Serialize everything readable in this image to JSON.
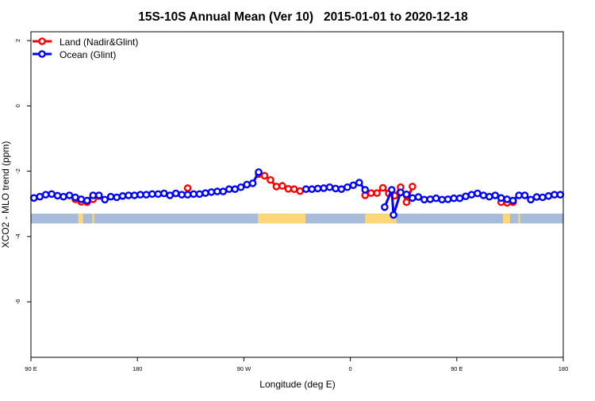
{
  "chart_data": {
    "type": "line",
    "title": "15S-10S Annual Mean (Ver 10)   2015-01-01 to 2020-12-18",
    "xlabel": "Longitude (deg E)",
    "ylabel": "XCO2 - MLO trend (ppm)",
    "xlim": [
      90,
      540
    ],
    "ylim": [
      -7.7,
      2.27
    ],
    "xticks": [
      {
        "value": 90,
        "label": "90 E"
      },
      {
        "value": 180,
        "label": "180"
      },
      {
        "value": 270,
        "label": "90 W"
      },
      {
        "value": 360,
        "label": "0"
      },
      {
        "value": 450,
        "label": "90 E"
      },
      {
        "value": 540,
        "label": "180"
      }
    ],
    "yticks": [
      {
        "value": 2,
        "label": "2"
      },
      {
        "value": 0,
        "label": "0"
      },
      {
        "value": -2,
        "label": "-2"
      },
      {
        "value": -4,
        "label": "-4"
      },
      {
        "value": -6,
        "label": "-6"
      }
    ],
    "grid": false,
    "legend_position": "top-left",
    "series": [
      {
        "name": "Land (Nadir&Glint)",
        "color": "#ff0000",
        "points": [
          [
            127.5,
            -2.86
          ],
          [
            132.5,
            -2.94
          ],
          [
            137.5,
            -2.95
          ],
          [
            142.5,
            -2.86
          ],
          [
            147.5,
            -2.76
          ],
          null,
          [
            222.5,
            -2.52
          ],
          null,
          [
            282.5,
            -2.09
          ],
          [
            287.5,
            -2.14
          ],
          [
            292.5,
            -2.27
          ],
          [
            297.5,
            -2.47
          ],
          [
            302.5,
            -2.45
          ],
          [
            307.5,
            -2.54
          ],
          [
            312.5,
            -2.55
          ],
          [
            317.5,
            -2.61
          ],
          null,
          [
            372.5,
            -2.74
          ],
          [
            377.5,
            -2.67
          ],
          [
            382.5,
            -2.67
          ],
          [
            387.5,
            -2.51
          ],
          [
            392.5,
            -2.68
          ],
          [
            397.5,
            -2.75
          ],
          [
            402.5,
            -2.49
          ],
          [
            407.5,
            -2.95
          ],
          [
            412.5,
            -2.47
          ],
          null,
          [
            487.5,
            -2.95
          ],
          [
            492.5,
            -2.97
          ],
          [
            497.5,
            -2.95
          ]
        ]
      },
      {
        "name": "Ocean (Glint)",
        "color": "#0000ff",
        "points": [
          [
            92.5,
            -2.82
          ],
          [
            97.5,
            -2.78
          ],
          [
            102.5,
            -2.72
          ],
          [
            107.5,
            -2.7
          ],
          [
            112.5,
            -2.75
          ],
          [
            117.5,
            -2.78
          ],
          [
            122.5,
            -2.74
          ],
          [
            127.5,
            -2.8
          ],
          [
            132.5,
            -2.86
          ],
          [
            137.5,
            -2.9
          ],
          [
            142.5,
            -2.74
          ],
          [
            147.5,
            -2.74
          ],
          [
            152.5,
            -2.87
          ],
          [
            157.5,
            -2.78
          ],
          [
            162.5,
            -2.8
          ],
          [
            167.5,
            -2.76
          ],
          [
            172.5,
            -2.74
          ],
          [
            177.5,
            -2.74
          ],
          [
            182.5,
            -2.72
          ],
          [
            187.5,
            -2.72
          ],
          [
            192.5,
            -2.7
          ],
          [
            197.5,
            -2.7
          ],
          [
            202.5,
            -2.68
          ],
          [
            207.5,
            -2.74
          ],
          [
            212.5,
            -2.68
          ],
          [
            217.5,
            -2.72
          ],
          [
            222.5,
            -2.72
          ],
          [
            227.5,
            -2.7
          ],
          [
            232.5,
            -2.7
          ],
          [
            237.5,
            -2.67
          ],
          [
            242.5,
            -2.64
          ],
          [
            247.5,
            -2.62
          ],
          [
            252.5,
            -2.62
          ],
          [
            257.5,
            -2.55
          ],
          [
            262.5,
            -2.55
          ],
          [
            267.5,
            -2.49
          ],
          [
            272.5,
            -2.41
          ],
          [
            277.5,
            -2.37
          ],
          [
            282.5,
            -2.03
          ],
          null,
          [
            322.5,
            -2.55
          ],
          [
            327.5,
            -2.55
          ],
          [
            332.5,
            -2.53
          ],
          [
            337.5,
            -2.52
          ],
          [
            342.5,
            -2.49
          ],
          [
            347.5,
            -2.53
          ],
          [
            352.5,
            -2.55
          ],
          [
            357.5,
            -2.49
          ],
          [
            362.5,
            -2.43
          ],
          [
            367.5,
            -2.35
          ],
          [
            372.5,
            -2.57
          ],
          null,
          [
            389.0,
            -3.1
          ],
          [
            395.0,
            -2.57
          ],
          [
            396.5,
            -3.34
          ],
          [
            402.5,
            -2.65
          ],
          [
            407.5,
            -2.71
          ],
          [
            412.5,
            -2.82
          ],
          [
            417.5,
            -2.79
          ],
          [
            422.5,
            -2.87
          ],
          [
            427.5,
            -2.86
          ],
          [
            432.5,
            -2.83
          ],
          [
            437.5,
            -2.87
          ],
          [
            442.5,
            -2.86
          ],
          [
            447.5,
            -2.83
          ],
          [
            452.5,
            -2.83
          ],
          [
            457.5,
            -2.77
          ],
          [
            462.5,
            -2.72
          ],
          [
            467.5,
            -2.68
          ],
          [
            472.5,
            -2.74
          ],
          [
            477.5,
            -2.78
          ],
          [
            482.5,
            -2.74
          ],
          [
            487.5,
            -2.82
          ],
          [
            492.5,
            -2.86
          ],
          [
            497.5,
            -2.9
          ],
          [
            502.5,
            -2.74
          ],
          [
            507.5,
            -2.74
          ],
          [
            512.5,
            -2.87
          ],
          [
            517.5,
            -2.79
          ],
          [
            522.5,
            -2.8
          ],
          [
            527.5,
            -2.76
          ],
          [
            532.5,
            -2.72
          ],
          [
            537.5,
            -2.72
          ]
        ]
      }
    ],
    "surface_strip_colors": {
      "ocean": "#a7bcda",
      "land": "#fdd77a"
    }
  }
}
